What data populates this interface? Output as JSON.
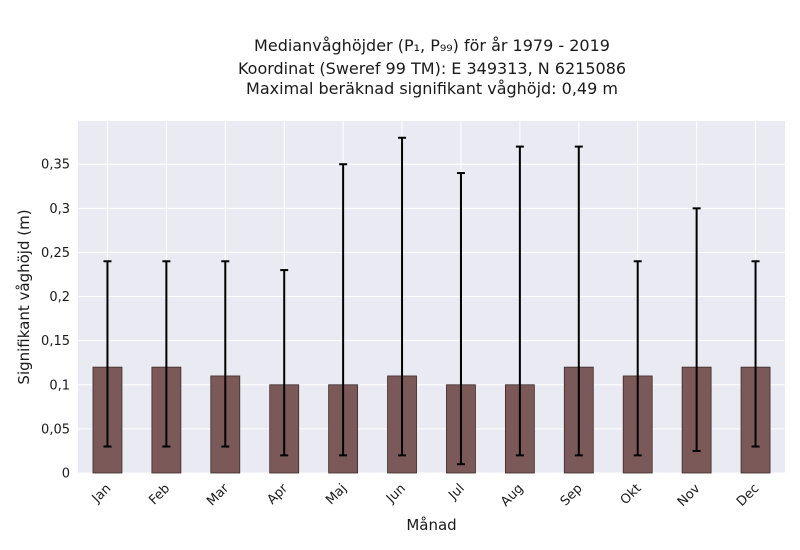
{
  "chart_data": {
    "type": "bar",
    "title_lines": [
      "Medianvåghöjder (P₁, P₉₉) för år 1979 - 2019",
      "Koordinat (Sweref 99 TM): E 349313, N 6215086",
      "Maximal beräknad signifikant våghöjd: 0,49 m"
    ],
    "xlabel": "Månad",
    "ylabel": "Signifikant våghöjd (m)",
    "categories": [
      "Jan",
      "Feb",
      "Mar",
      "Apr",
      "Maj",
      "Jun",
      "Jul",
      "Aug",
      "Sep",
      "Okt",
      "Nov",
      "Dec"
    ],
    "values": [
      0.12,
      0.12,
      0.11,
      0.1,
      0.1,
      0.11,
      0.1,
      0.1,
      0.12,
      0.11,
      0.12,
      0.12
    ],
    "p1": [
      0.03,
      0.03,
      0.03,
      0.02,
      0.02,
      0.02,
      0.01,
      0.02,
      0.02,
      0.02,
      0.025,
      0.03
    ],
    "p99": [
      0.24,
      0.24,
      0.24,
      0.23,
      0.35,
      0.38,
      0.34,
      0.37,
      0.37,
      0.24,
      0.3,
      0.24
    ],
    "yticks": [
      "0",
      "0,05",
      "0,1",
      "0,15",
      "0,2",
      "0,25",
      "0,3",
      "0,35"
    ],
    "ytick_values": [
      0,
      0.05,
      0.1,
      0.15,
      0.2,
      0.25,
      0.3,
      0.35
    ],
    "ylim": [
      0,
      0.399
    ],
    "grid": true,
    "colors": {
      "bar": "#7b5959",
      "bar_edge": "#3a2b2b",
      "plot_bg": "#eaeaf2",
      "grid": "#ffffff",
      "errorbar": "#000000"
    }
  }
}
